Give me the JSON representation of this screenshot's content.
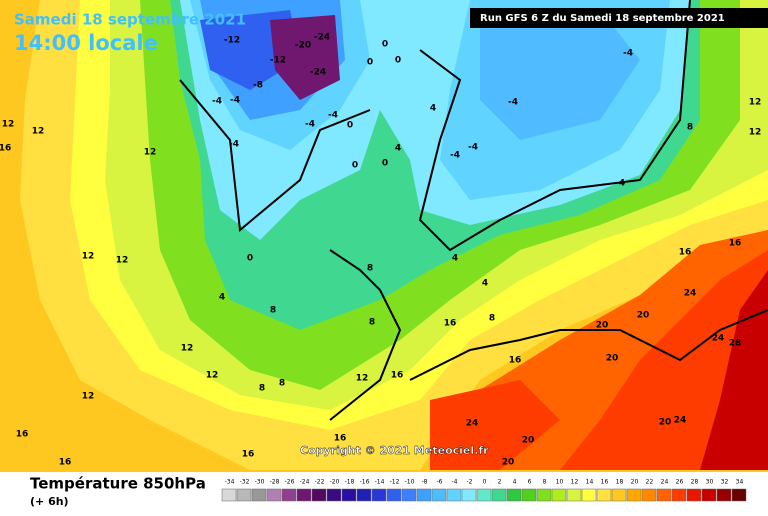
{
  "header": {
    "date": "Samedi 18 septembre 2021",
    "time": "14:00 locale",
    "run": "Run GFS 6 Z du Samedi 18 septembre 2021"
  },
  "map": {
    "copyright": "Copyright © 2021 Meteociel.fr",
    "labels": [
      -12,
      -20,
      -24,
      -12,
      -8,
      -24,
      -4,
      -4,
      -4,
      -4,
      -4,
      0,
      0,
      0,
      0,
      0,
      0,
      4,
      4,
      -4,
      -4,
      -4,
      -4,
      12,
      12,
      12,
      16,
      12,
      12,
      0,
      4,
      8,
      12,
      12,
      8,
      8,
      12,
      16,
      16,
      16,
      16,
      8,
      8,
      12,
      16,
      16,
      16,
      20,
      20,
      24,
      24,
      28,
      20,
      24,
      20,
      20,
      20,
      24,
      16,
      16,
      12,
      12,
      8,
      4,
      4,
      4,
      8
    ]
  },
  "legend": {
    "title": "Température 850hPa",
    "subtitle": "(+ 6h)",
    "scale": [
      -34,
      -32,
      -30,
      -28,
      -26,
      -24,
      -22,
      -20,
      -18,
      -16,
      -14,
      -12,
      -10,
      -8,
      -6,
      -4,
      -2,
      0,
      2,
      4,
      6,
      8,
      10,
      12,
      14,
      16,
      18,
      20,
      22,
      24,
      26,
      28,
      30,
      32,
      34
    ],
    "colors": [
      "#d8d8d8",
      "#b8b8b8",
      "#989898",
      "#b080b0",
      "#904090",
      "#701870",
      "#500a60",
      "#3a0a80",
      "#2a10a0",
      "#2020b8",
      "#2838d8",
      "#3060f0",
      "#3c80ff",
      "#40a0ff",
      "#50bcff",
      "#60d4ff",
      "#80e8ff",
      "#60e8c8",
      "#40d890",
      "#30c840",
      "#50d020",
      "#80e020",
      "#b0ec20",
      "#d8f440",
      "#ffff40",
      "#ffe040",
      "#ffc820",
      "#ffa800",
      "#ff8800",
      "#ff6400",
      "#ff3c00",
      "#e81800",
      "#c80000",
      "#980000",
      "#680000"
    ]
  }
}
